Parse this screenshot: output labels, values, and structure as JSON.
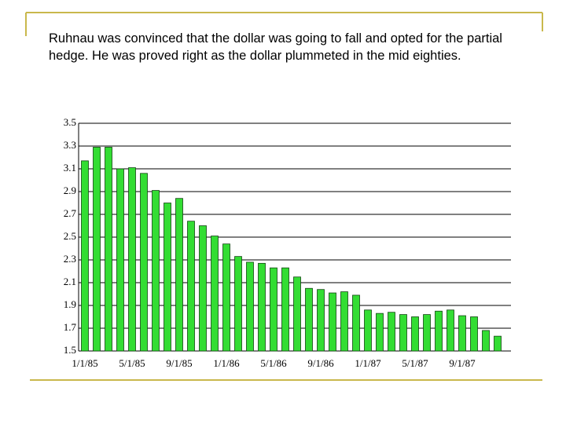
{
  "text": "Ruhnau was convinced that the dollar was going to fall and opted for the partial hedge.  He was proved right as the dollar plummeted in the mid eighties.",
  "chart_data": {
    "type": "bar",
    "color": "#33dd33",
    "categories": [
      "1/1/85",
      null,
      null,
      null,
      "5/1/85",
      null,
      null,
      null,
      "9/1/85",
      null,
      null,
      null,
      "1/1/86",
      null,
      null,
      null,
      "5/1/86",
      null,
      null,
      null,
      "9/1/86",
      null,
      null,
      null,
      "1/1/87",
      null,
      null,
      null,
      "5/1/87",
      null,
      null,
      null,
      "9/1/87",
      null,
      null,
      null
    ],
    "values": [
      3.17,
      3.29,
      3.29,
      3.1,
      3.11,
      3.06,
      2.91,
      2.8,
      2.84,
      2.64,
      2.6,
      2.51,
      2.44,
      2.33,
      2.28,
      2.27,
      2.23,
      2.23,
      2.15,
      2.05,
      2.04,
      2.01,
      2.02,
      1.99,
      1.86,
      1.83,
      1.84,
      1.82,
      1.8,
      1.82,
      1.85,
      1.86,
      1.81,
      1.8,
      1.68,
      1.63
    ],
    "ylim": [
      1.5,
      3.5
    ],
    "yticks": [
      1.5,
      1.7,
      1.9,
      2.1,
      2.3,
      2.5,
      2.7,
      2.9,
      3.1,
      3.3,
      3.5
    ],
    "grid": true
  }
}
